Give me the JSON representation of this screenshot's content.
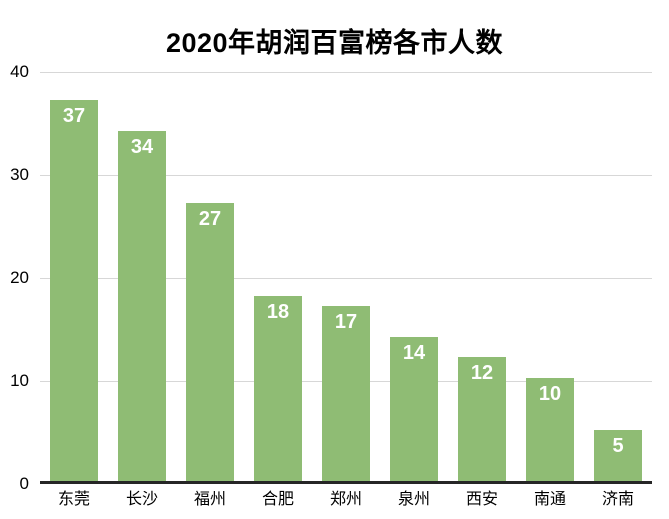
{
  "title": "2020年胡润百富榜各市人数",
  "chart_data": {
    "type": "bar",
    "title": "2020年胡润百富榜各市人数",
    "categories": [
      "东莞",
      "长沙",
      "福州",
      "合肥",
      "郑州",
      "泉州",
      "西安",
      "南通",
      "济南"
    ],
    "values": [
      37,
      34,
      27,
      18,
      17,
      14,
      12,
      10,
      5
    ],
    "xlabel": "",
    "ylabel": "",
    "ylim": [
      0,
      40
    ],
    "yticks": [
      40,
      30,
      20,
      10,
      0
    ],
    "grid": "horizontal-only",
    "legend": "none",
    "value_labels": "inside-top-white-bold",
    "colors": {
      "bar": "#8FBC74",
      "value_label": "#FFFFFF",
      "gridline": "#D7D7D7",
      "axis_baseline": "#262626",
      "text": "#000000",
      "background": "#FFFFFF"
    }
  }
}
